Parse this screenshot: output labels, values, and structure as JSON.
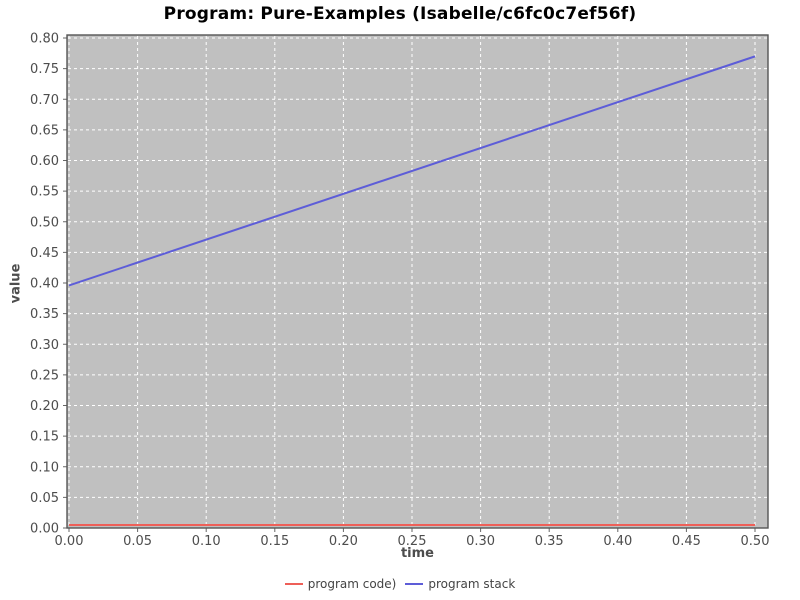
{
  "chart_data": {
    "type": "line",
    "title": "Program: Pure-Examples (Isabelle/c6fc0c7ef56f)",
    "xlabel": "time",
    "ylabel": "value",
    "xlim": [
      0.0,
      0.5
    ],
    "ylim": [
      0.0,
      0.8
    ],
    "x_tick_labels": [
      "0.00",
      "0.05",
      "0.10",
      "0.15",
      "0.20",
      "0.25",
      "0.30",
      "0.35",
      "0.40",
      "0.45",
      "0.50"
    ],
    "y_tick_labels": [
      "0.00",
      "0.05",
      "0.10",
      "0.15",
      "0.20",
      "0.25",
      "0.30",
      "0.35",
      "0.40",
      "0.45",
      "0.50",
      "0.55",
      "0.60",
      "0.65",
      "0.70",
      "0.75",
      "0.80"
    ],
    "grid": true,
    "legend_position": "bottom",
    "plot_bg_color": "#c0c0c0",
    "grid_color": "#ffffff",
    "border_color": "#555555",
    "tick_label_color": "#4d4d4d",
    "series": [
      {
        "name": "program code)",
        "color": "#ee5f58",
        "x": [
          0.0,
          0.5
        ],
        "y": [
          0.005,
          0.005
        ]
      },
      {
        "name": "program stack",
        "color": "#5d5dd8",
        "x": [
          0.0,
          0.5
        ],
        "y": [
          0.396,
          0.77
        ]
      }
    ]
  }
}
